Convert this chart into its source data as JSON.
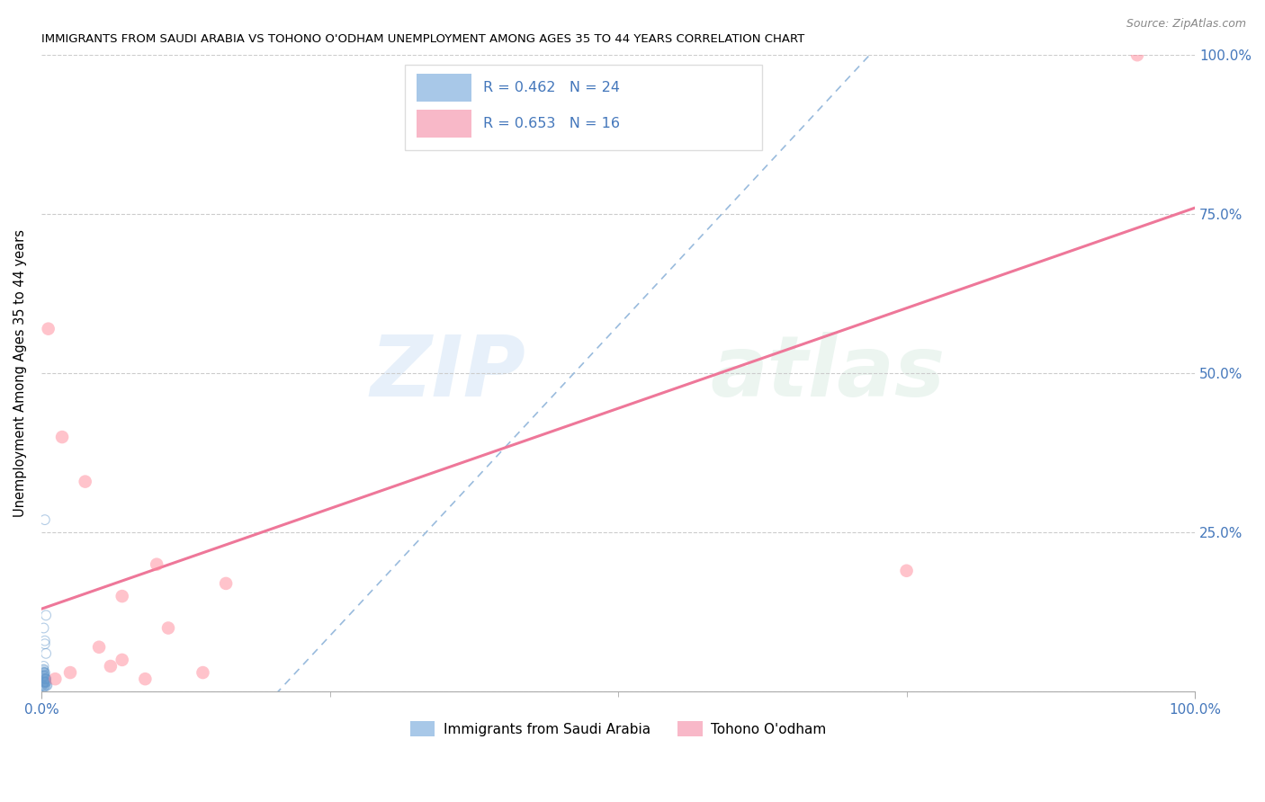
{
  "title": "IMMIGRANTS FROM SAUDI ARABIA VS TOHONO O'ODHAM UNEMPLOYMENT AMONG AGES 35 TO 44 YEARS CORRELATION CHART",
  "source": "Source: ZipAtlas.com",
  "xlabel_blue": "Immigrants from Saudi Arabia",
  "xlabel_pink": "Tohono O'odham",
  "ylabel": "Unemployment Among Ages 35 to 44 years",
  "xlim": [
    0.0,
    1.0
  ],
  "ylim": [
    0.0,
    1.0
  ],
  "xtick_edge_labels": [
    "0.0%",
    "100.0%"
  ],
  "xtick_edge_values": [
    0.0,
    1.0
  ],
  "ytick_values": [
    0.0,
    0.25,
    0.5,
    0.75,
    1.0
  ],
  "right_ytick_labels": [
    "25.0%",
    "50.0%",
    "75.0%",
    "100.0%"
  ],
  "right_ytick_values": [
    0.25,
    0.5,
    0.75,
    1.0
  ],
  "legend_blue_text": "R = 0.462   N = 24",
  "legend_pink_text": "R = 0.653   N = 16",
  "blue_patch_color": "#A8C8E8",
  "pink_patch_color": "#F8B8C8",
  "blue_scatter_color": "#6699CC",
  "pink_scatter_color": "#FF8899",
  "blue_line_color": "#99BBDD",
  "pink_line_color": "#EE7799",
  "text_blue_color": "#4477BB",
  "watermark_color": "#AACCDD",
  "blue_scatter_x": [
    0.003,
    0.004,
    0.005,
    0.002,
    0.003,
    0.001,
    0.004,
    0.002,
    0.003,
    0.002,
    0.003,
    0.004,
    0.002,
    0.003,
    0.004,
    0.002,
    0.003,
    0.002,
    0.004,
    0.003,
    0.003,
    0.004,
    0.002,
    0.003
  ],
  "blue_scatter_y": [
    0.015,
    0.02,
    0.01,
    0.025,
    0.03,
    0.01,
    0.02,
    0.035,
    0.015,
    0.008,
    0.08,
    0.06,
    0.1,
    0.075,
    0.015,
    0.04,
    0.02,
    0.03,
    0.015,
    0.025,
    0.27,
    0.12,
    0.015,
    0.008
  ],
  "pink_scatter_x": [
    0.006,
    0.018,
    0.038,
    0.07,
    0.11,
    0.16,
    0.1,
    0.05,
    0.025,
    0.06,
    0.012,
    0.07,
    0.75,
    0.09,
    0.95,
    0.14
  ],
  "pink_scatter_y": [
    0.57,
    0.4,
    0.33,
    0.15,
    0.1,
    0.17,
    0.2,
    0.07,
    0.03,
    0.04,
    0.02,
    0.05,
    0.19,
    0.02,
    1.0,
    0.03
  ],
  "blue_line_x": [
    0.0,
    1.0
  ],
  "blue_line_y": [
    -0.4,
    1.55
  ],
  "pink_line_x": [
    0.0,
    1.0
  ],
  "pink_line_y": [
    0.13,
    0.76
  ],
  "grid_color": "#CCCCCC",
  "grid_line_style": "--",
  "grid_lw": 0.8,
  "scatter_blue_s": 60,
  "scatter_pink_s": 110,
  "blue_line_lw": 1.2,
  "pink_line_lw": 2.2,
  "tick_minor_count": 3
}
